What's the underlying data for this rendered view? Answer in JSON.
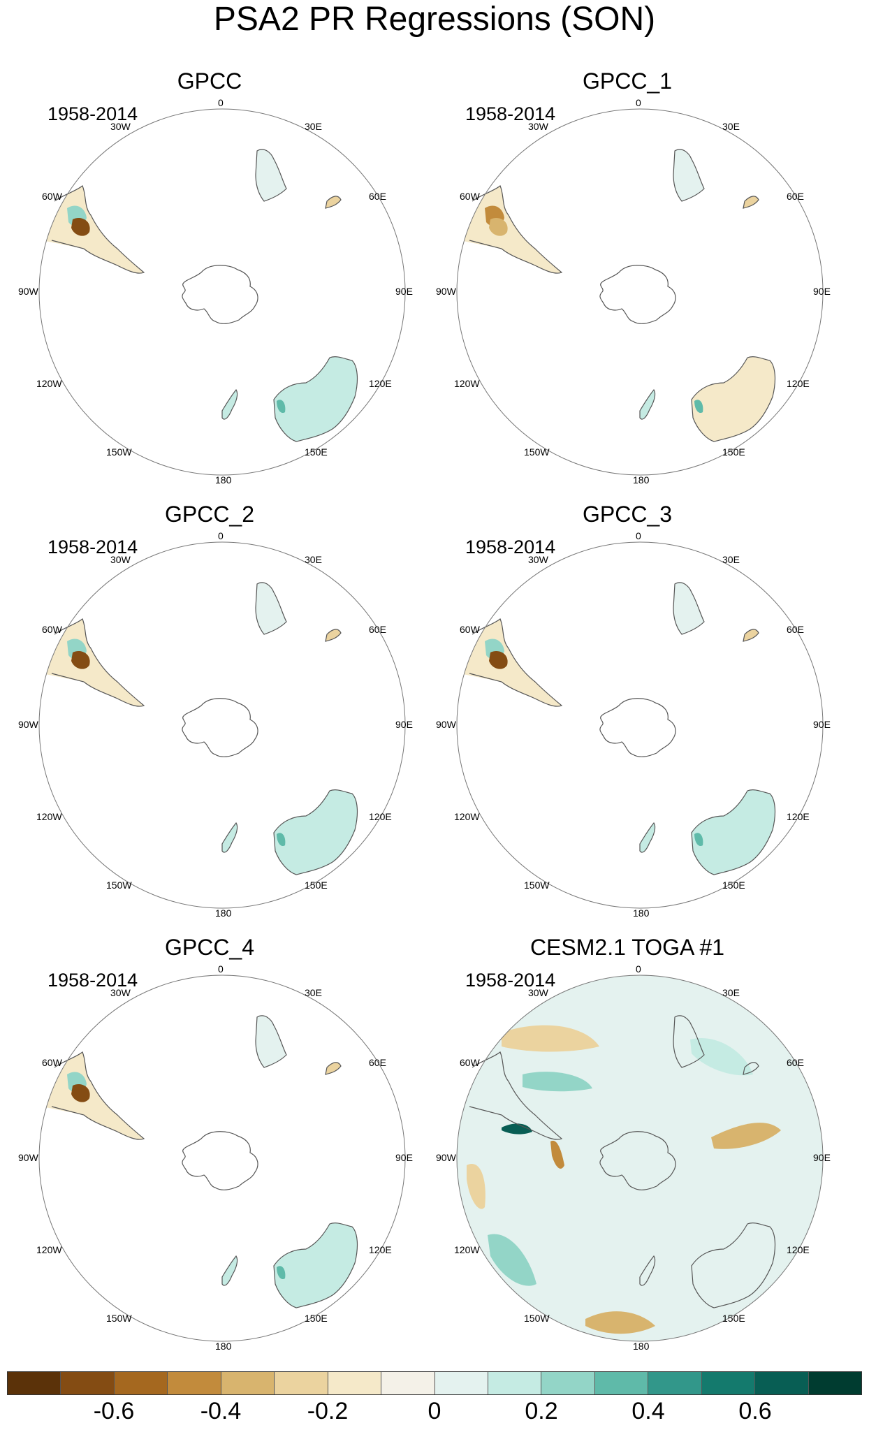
{
  "title": "PSA2 PR Regressions (SON)",
  "panels": [
    {
      "title": "GPCC",
      "period": "1958-2014"
    },
    {
      "title": "GPCC_1",
      "period": "1958-2014"
    },
    {
      "title": "GPCC_2",
      "period": "1958-2014"
    },
    {
      "title": "GPCC_3",
      "period": "1958-2014"
    },
    {
      "title": "GPCC_4",
      "period": "1958-2014"
    },
    {
      "title": "CESM2.1 TOGA #1",
      "period": "1958-2014"
    }
  ],
  "lon_labels": {
    "top": "0",
    "bottom": "180",
    "30w": "30W",
    "30e": "30E",
    "60w": "60W",
    "60e": "60E",
    "90w": "90W",
    "90e": "90E",
    "120w": "120W",
    "120e": "120E",
    "150w": "150W",
    "150e": "150E"
  },
  "colorbar": {
    "colors": [
      "#5b3209",
      "#844c13",
      "#a5681f",
      "#c28b3c",
      "#d8b46e",
      "#ebd39f",
      "#f5e9c9",
      "#f4f1e8",
      "#e4f2ef",
      "#c5ebe3",
      "#93d5c7",
      "#5fbaa9",
      "#32978a",
      "#147a6d",
      "#085e54",
      "#003c30"
    ],
    "tick_labels": [
      "-0.6",
      "-0.4",
      "-0.2",
      "0",
      "0.2",
      "0.4",
      "0.6"
    ]
  }
}
